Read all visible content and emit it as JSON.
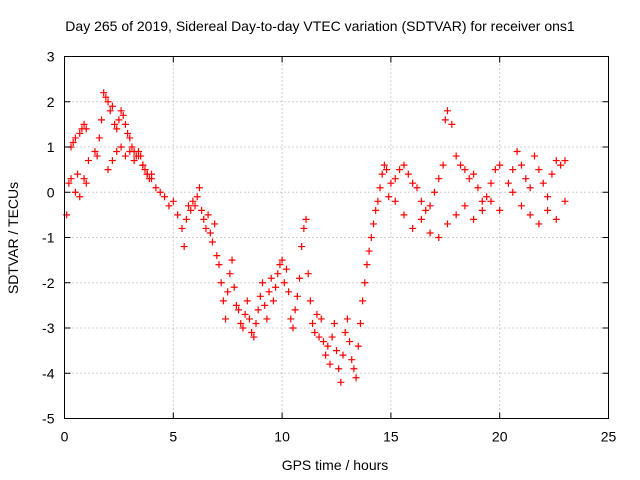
{
  "chart_data": {
    "type": "scatter",
    "title": "Day 265 of 2019, Sidereal Day-to-day VTEC variation (SDTVAR) for receiver ons1",
    "xlabel": "GPS time / hours",
    "ylabel": "SDTVAR / TECUs",
    "xlim": [
      0,
      25
    ],
    "ylim": [
      -5,
      3
    ],
    "xticks": [
      0,
      5,
      10,
      15,
      20,
      25
    ],
    "yticks": [
      -5,
      -4,
      -3,
      -2,
      -1,
      0,
      1,
      2,
      3
    ],
    "grid": true,
    "marker": "plus",
    "color": "#ff0000",
    "series": [
      {
        "name": "SDTVAR",
        "x": [
          0.1,
          0.2,
          0.3,
          0.4,
          0.5,
          0.6,
          0.7,
          0.8,
          0.9,
          1.0,
          1.1,
          0.3,
          0.5,
          0.7,
          0.9,
          1.0,
          1.4,
          1.5,
          1.6,
          1.7,
          1.8,
          1.9,
          2.0,
          2.1,
          2.2,
          2.3,
          2.4,
          2.5,
          2.6,
          2.7,
          2.8,
          2.9,
          3.0,
          3.1,
          3.2,
          3.3,
          3.4,
          3.5,
          3.6,
          3.7,
          3.8,
          3.9,
          4.0,
          2.0,
          2.2,
          2.4,
          2.6,
          2.8,
          3.0,
          3.2,
          3.4,
          3.6,
          3.8,
          4.0,
          4.2,
          4.4,
          4.6,
          4.8,
          5.0,
          5.2,
          5.4,
          5.5,
          5.6,
          5.7,
          5.8,
          5.9,
          6.0,
          6.1,
          6.2,
          6.3,
          6.4,
          6.5,
          6.6,
          6.7,
          6.8,
          6.9,
          7.0,
          7.1,
          7.2,
          7.3,
          7.4,
          7.5,
          7.6,
          7.7,
          7.8,
          7.9,
          8.0,
          8.1,
          8.2,
          8.3,
          8.4,
          8.5,
          8.6,
          8.7,
          8.8,
          8.9,
          9.0,
          9.1,
          9.2,
          9.3,
          9.4,
          9.5,
          9.6,
          9.7,
          9.8,
          9.9,
          10.0,
          10.1,
          10.2,
          10.3,
          10.4,
          10.5,
          10.6,
          10.7,
          10.8,
          10.9,
          11.0,
          11.1,
          11.2,
          11.3,
          11.4,
          11.5,
          11.6,
          11.7,
          11.8,
          11.9,
          12.0,
          12.1,
          12.2,
          12.3,
          12.4,
          12.5,
          12.6,
          12.7,
          12.8,
          12.9,
          13.0,
          13.1,
          13.2,
          13.3,
          13.4,
          13.5,
          13.6,
          13.7,
          13.8,
          13.9,
          14.0,
          14.1,
          14.2,
          14.3,
          14.4,
          14.5,
          14.6,
          14.7,
          14.8,
          14.9,
          15.0,
          15.2,
          15.4,
          15.6,
          15.8,
          16.0,
          16.2,
          16.4,
          16.6,
          16.8,
          17.0,
          17.2,
          17.4,
          17.5,
          17.6,
          17.8,
          18.0,
          18.2,
          18.4,
          18.6,
          18.8,
          19.0,
          19.2,
          19.4,
          19.6,
          19.8,
          20.0,
          15.2,
          15.6,
          16.0,
          16.4,
          16.8,
          17.2,
          17.6,
          18.0,
          18.4,
          18.8,
          19.2,
          19.6,
          20.0,
          20.4,
          20.6,
          20.8,
          21.0,
          21.2,
          21.4,
          21.6,
          21.8,
          22.0,
          22.2,
          22.4,
          22.6,
          22.8,
          23.0,
          20.6,
          21.0,
          21.4,
          21.8,
          22.2,
          22.6,
          23.0
        ],
        "y": [
          -0.5,
          0.2,
          1.0,
          1.1,
          1.2,
          0.4,
          1.3,
          1.4,
          1.5,
          1.4,
          0.7,
          0.3,
          0.0,
          -0.1,
          0.3,
          0.2,
          0.9,
          0.8,
          1.2,
          1.6,
          2.2,
          2.1,
          2.0,
          1.8,
          1.9,
          1.5,
          1.4,
          1.6,
          1.8,
          1.7,
          1.5,
          1.3,
          1.2,
          1.0,
          0.9,
          0.8,
          0.9,
          0.8,
          0.6,
          0.5,
          0.4,
          0.3,
          0.4,
          0.5,
          0.7,
          0.9,
          1.0,
          0.8,
          0.9,
          0.7,
          0.8,
          0.6,
          0.4,
          0.3,
          0.1,
          0.0,
          -0.1,
          -0.3,
          -0.2,
          -0.5,
          -0.8,
          -1.2,
          -0.6,
          -0.3,
          -0.4,
          -0.2,
          -0.3,
          -0.1,
          0.1,
          -0.4,
          -0.6,
          -0.8,
          -0.5,
          -0.9,
          -1.1,
          -0.7,
          -1.4,
          -1.6,
          -2.0,
          -2.4,
          -2.8,
          -2.2,
          -1.8,
          -1.5,
          -2.1,
          -2.5,
          -2.6,
          -2.9,
          -3.0,
          -2.7,
          -2.4,
          -2.8,
          -3.1,
          -3.2,
          -2.9,
          -2.6,
          -2.3,
          -2.0,
          -2.5,
          -2.8,
          -2.2,
          -1.9,
          -2.4,
          -2.1,
          -1.8,
          -1.6,
          -1.5,
          -2.0,
          -1.7,
          -2.2,
          -2.8,
          -3.0,
          -2.6,
          -2.3,
          -1.9,
          -1.2,
          -0.8,
          -0.6,
          -1.8,
          -2.4,
          -2.9,
          -3.1,
          -2.7,
          -3.2,
          -2.8,
          -3.3,
          -3.6,
          -3.4,
          -3.8,
          -3.2,
          -2.9,
          -3.5,
          -3.9,
          -4.2,
          -3.6,
          -3.1,
          -2.8,
          -3.3,
          -3.7,
          -3.9,
          -4.1,
          -3.4,
          -2.9,
          -2.4,
          -2.0,
          -1.6,
          -1.3,
          -1.0,
          -0.7,
          -0.4,
          -0.2,
          0.1,
          0.4,
          0.6,
          0.5,
          -0.1,
          0.2,
          0.3,
          0.5,
          0.6,
          0.4,
          0.2,
          0.1,
          -0.2,
          -0.4,
          -0.3,
          0.0,
          0.3,
          0.6,
          1.6,
          1.8,
          1.5,
          0.8,
          0.6,
          0.5,
          0.3,
          0.4,
          0.1,
          -0.2,
          -0.1,
          0.2,
          0.5,
          0.6,
          -0.2,
          -0.5,
          -0.8,
          -0.6,
          -0.9,
          -1.0,
          -0.7,
          -0.5,
          -0.3,
          -0.6,
          -0.4,
          -0.2,
          -0.4,
          0.2,
          0.5,
          0.9,
          0.6,
          0.3,
          0.1,
          0.8,
          0.5,
          0.2,
          -0.1,
          0.4,
          0.7,
          0.6,
          0.7,
          0.0,
          -0.3,
          -0.5,
          -0.7,
          -0.4,
          -0.6,
          -0.2
        ]
      }
    ]
  }
}
